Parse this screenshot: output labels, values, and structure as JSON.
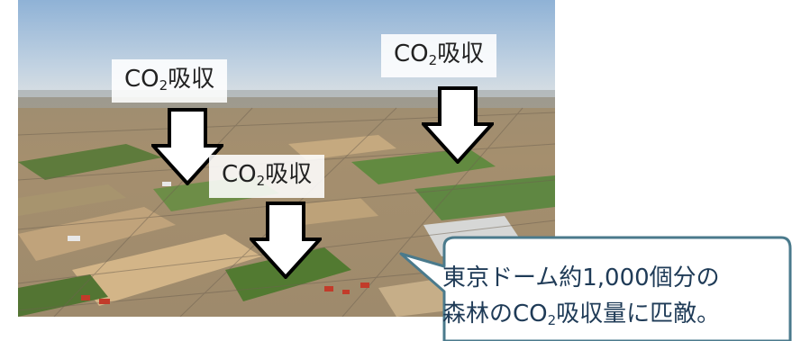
{
  "photo": {
    "description_icon": "aerial-farmland-photo"
  },
  "labels": [
    {
      "pre": "CO",
      "sub": "2",
      "post": "吸収"
    },
    {
      "pre": "CO",
      "sub": "2",
      "post": "吸収"
    },
    {
      "pre": "CO",
      "sub": "2",
      "post": "吸収"
    }
  ],
  "callout": {
    "line1": "東京ドーム約1,000個分の",
    "line2_pre": "森林のCO",
    "line2_sub": "2",
    "line2_post": "吸収量に匹敵。"
  },
  "colors": {
    "callout_border": "#4a7a8c",
    "callout_fill": "#ffffff",
    "arrow_fill": "#ffffff",
    "arrow_stroke": "#000000"
  }
}
